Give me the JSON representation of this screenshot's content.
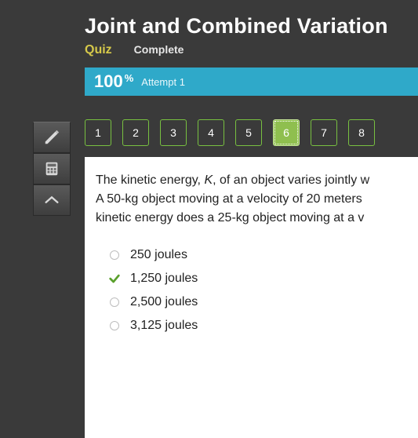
{
  "header": {
    "title": "Joint and Combined Variation",
    "quiz_label": "Quiz",
    "status": "Complete"
  },
  "score": {
    "value": "100",
    "suffix": "%",
    "attempt": "Attempt 1",
    "bar_color": "#2fa9c9"
  },
  "toolbar": {
    "items": [
      {
        "name": "pencil-icon"
      },
      {
        "name": "calculator-icon"
      },
      {
        "name": "collapse-icon"
      }
    ]
  },
  "qnav": {
    "buttons": [
      "1",
      "2",
      "3",
      "4",
      "5",
      "6",
      "7",
      "8"
    ],
    "active_index": 5,
    "border_color": "#78c040",
    "active_bg": "#8fbf4f"
  },
  "question": {
    "line1_a": "The kinetic energy, ",
    "line1_K": "K",
    "line1_b": ", of an object varies jointly w",
    "line2": "A 50-kg object moving at a velocity of 20 meters ",
    "line3": "kinetic energy does a 25-kg object moving at a v"
  },
  "options": [
    {
      "label": "250 joules",
      "correct": false
    },
    {
      "label": "1,250 joules",
      "correct": true
    },
    {
      "label": "2,500 joules",
      "correct": false
    },
    {
      "label": "3,125 joules",
      "correct": false
    }
  ],
  "colors": {
    "page_bg": "#3a3a3a",
    "accent_yellow": "#d6c94a",
    "check_green": "#5aa02c"
  }
}
